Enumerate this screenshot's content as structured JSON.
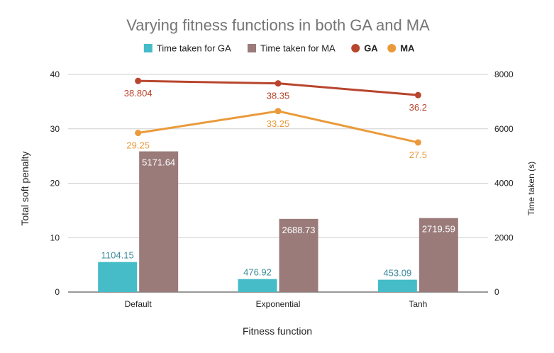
{
  "chart_data": {
    "type": "bar",
    "title": "Varying fitness functions in both GA and MA",
    "xlabel": "Fitness function",
    "ylabel": "Total soft penalty",
    "y2label": "Time taken (s)",
    "categories": [
      "Default",
      "Exponential",
      "Tanh"
    ],
    "ylim": [
      0,
      40
    ],
    "yticks": [
      "0",
      "10",
      "20",
      "30",
      "40"
    ],
    "y2lim": [
      0,
      8000
    ],
    "y2ticks": [
      "0",
      "2000",
      "4000",
      "6000",
      "8000"
    ],
    "legend_position": "top",
    "series": [
      {
        "name": "Time taken for GA",
        "kind": "bar",
        "axis": "right",
        "color": "#45BCC8",
        "values": [
          1104.15,
          476.92,
          453.09
        ],
        "labels": [
          "1104.15",
          "476.92",
          "453.09"
        ]
      },
      {
        "name": "Time taken for MA",
        "kind": "bar",
        "axis": "right",
        "color": "#9A7B7A",
        "values": [
          5171.64,
          2688.73,
          2719.59
        ],
        "labels": [
          "5171.64",
          "2688.73",
          "2719.59"
        ]
      },
      {
        "name": "GA",
        "kind": "line",
        "axis": "left",
        "color": "#B8452D",
        "values": [
          38.804,
          38.35,
          36.2
        ],
        "labels": [
          "38.804",
          "38.35",
          "36.2"
        ]
      },
      {
        "name": "MA",
        "kind": "line",
        "axis": "left",
        "color": "#EA9A3A",
        "values": [
          29.25,
          33.25,
          27.5
        ],
        "labels": [
          "29.25",
          "33.25",
          "27.5"
        ]
      }
    ]
  }
}
